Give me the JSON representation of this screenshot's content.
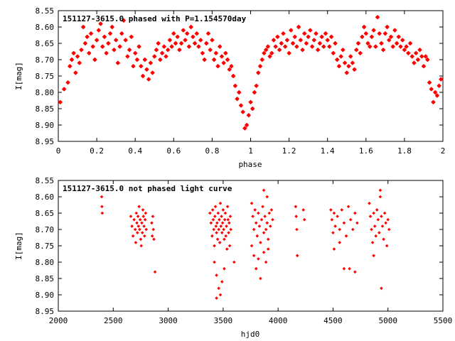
{
  "chart_data": [
    {
      "type": "scatter",
      "title": "151127-3615.0 phased with P=1.154570day",
      "xlabel": "phase",
      "ylabel": "I[mag]",
      "xlim": [
        0,
        2
      ],
      "ylim": [
        8.95,
        8.55
      ],
      "x_ticks": [
        0,
        0.2,
        0.4,
        0.6,
        0.8,
        1,
        1.2,
        1.4,
        1.6,
        1.8,
        2
      ],
      "y_ticks": [
        8.55,
        8.6,
        8.65,
        8.7,
        8.75,
        8.8,
        8.85,
        8.9,
        8.95
      ],
      "marker": "star",
      "color": "#ff0000",
      "points": [
        [
          0.01,
          8.83
        ],
        [
          0.03,
          8.79
        ],
        [
          0.05,
          8.77
        ],
        [
          0.06,
          8.72
        ],
        [
          0.07,
          8.7
        ],
        [
          0.08,
          8.68
        ],
        [
          0.09,
          8.74
        ],
        [
          0.1,
          8.69
        ],
        [
          0.11,
          8.71
        ],
        [
          0.12,
          8.67
        ],
        [
          0.13,
          8.6
        ],
        [
          0.14,
          8.65
        ],
        [
          0.15,
          8.63
        ],
        [
          0.16,
          8.68
        ],
        [
          0.17,
          8.62
        ],
        [
          0.18,
          8.66
        ],
        [
          0.19,
          8.7
        ],
        [
          0.2,
          8.64
        ],
        [
          0.21,
          8.61
        ],
        [
          0.22,
          8.59
        ],
        [
          0.23,
          8.66
        ],
        [
          0.24,
          8.63
        ],
        [
          0.25,
          8.68
        ],
        [
          0.26,
          8.65
        ],
        [
          0.27,
          8.62
        ],
        [
          0.28,
          8.6
        ],
        [
          0.29,
          8.67
        ],
        [
          0.3,
          8.64
        ],
        [
          0.31,
          8.71
        ],
        [
          0.32,
          8.66
        ],
        [
          0.33,
          8.62
        ],
        [
          0.34,
          8.58
        ],
        [
          0.35,
          8.64
        ],
        [
          0.36,
          8.69
        ],
        [
          0.37,
          8.67
        ],
        [
          0.38,
          8.63
        ],
        [
          0.39,
          8.72
        ],
        [
          0.4,
          8.68
        ],
        [
          0.41,
          8.7
        ],
        [
          0.42,
          8.66
        ],
        [
          0.43,
          8.72
        ],
        [
          0.44,
          8.75
        ],
        [
          0.45,
          8.7
        ],
        [
          0.46,
          8.73
        ],
        [
          0.47,
          8.76
        ],
        [
          0.48,
          8.71
        ],
        [
          0.49,
          8.74
        ],
        [
          0.5,
          8.69
        ],
        [
          0.51,
          8.67
        ],
        [
          0.52,
          8.65
        ],
        [
          0.53,
          8.7
        ],
        [
          0.54,
          8.68
        ],
        [
          0.55,
          8.66
        ],
        [
          0.56,
          8.69
        ],
        [
          0.57,
          8.67
        ],
        [
          0.58,
          8.64
        ],
        [
          0.59,
          8.66
        ],
        [
          0.6,
          8.62
        ],
        [
          0.61,
          8.65
        ],
        [
          0.62,
          8.63
        ],
        [
          0.63,
          8.67
        ],
        [
          0.64,
          8.65
        ],
        [
          0.65,
          8.61
        ],
        [
          0.66,
          8.64
        ],
        [
          0.67,
          8.62
        ],
        [
          0.68,
          8.66
        ],
        [
          0.69,
          8.6
        ],
        [
          0.7,
          8.63
        ],
        [
          0.71,
          8.65
        ],
        [
          0.72,
          8.62
        ],
        [
          0.73,
          8.66
        ],
        [
          0.74,
          8.64
        ],
        [
          0.75,
          8.68
        ],
        [
          0.76,
          8.7
        ],
        [
          0.77,
          8.65
        ],
        [
          0.78,
          8.62
        ],
        [
          0.79,
          8.67
        ],
        [
          0.8,
          8.64
        ],
        [
          0.81,
          8.7
        ],
        [
          0.82,
          8.68
        ],
        [
          0.83,
          8.72
        ],
        [
          0.84,
          8.66
        ],
        [
          0.85,
          8.69
        ],
        [
          0.86,
          8.71
        ],
        [
          0.87,
          8.68
        ],
        [
          0.88,
          8.7
        ],
        [
          0.89,
          8.73
        ],
        [
          0.9,
          8.72
        ],
        [
          0.91,
          8.75
        ],
        [
          0.92,
          8.78
        ],
        [
          0.93,
          8.82
        ],
        [
          0.94,
          8.8
        ],
        [
          0.95,
          8.84
        ],
        [
          0.96,
          8.86
        ],
        [
          0.97,
          8.91
        ],
        [
          0.98,
          8.9
        ],
        [
          0.99,
          8.87
        ],
        [
          1.0,
          8.83
        ],
        [
          1.01,
          8.85
        ],
        [
          1.02,
          8.8
        ],
        [
          1.03,
          8.78
        ],
        [
          1.04,
          8.74
        ],
        [
          1.05,
          8.72
        ],
        [
          1.06,
          8.7
        ],
        [
          1.07,
          8.68
        ],
        [
          1.08,
          8.67
        ],
        [
          1.09,
          8.66
        ],
        [
          1.1,
          8.69
        ],
        [
          1.11,
          8.68
        ],
        [
          1.12,
          8.64
        ],
        [
          1.13,
          8.66
        ],
        [
          1.14,
          8.63
        ],
        [
          1.15,
          8.67
        ],
        [
          1.16,
          8.65
        ],
        [
          1.17,
          8.62
        ],
        [
          1.18,
          8.66
        ],
        [
          1.19,
          8.64
        ],
        [
          1.2,
          8.68
        ],
        [
          1.21,
          8.61
        ],
        [
          1.22,
          8.65
        ],
        [
          1.23,
          8.63
        ],
        [
          1.24,
          8.66
        ],
        [
          1.25,
          8.6
        ],
        [
          1.26,
          8.64
        ],
        [
          1.27,
          8.67
        ],
        [
          1.28,
          8.62
        ],
        [
          1.29,
          8.65
        ],
        [
          1.3,
          8.63
        ],
        [
          1.31,
          8.61
        ],
        [
          1.32,
          8.66
        ],
        [
          1.33,
          8.64
        ],
        [
          1.34,
          8.62
        ],
        [
          1.35,
          8.67
        ],
        [
          1.36,
          8.65
        ],
        [
          1.37,
          8.63
        ],
        [
          1.38,
          8.66
        ],
        [
          1.39,
          8.62
        ],
        [
          1.4,
          8.64
        ],
        [
          1.41,
          8.66
        ],
        [
          1.42,
          8.63
        ],
        [
          1.43,
          8.68
        ],
        [
          1.44,
          8.65
        ],
        [
          1.45,
          8.7
        ],
        [
          1.46,
          8.72
        ],
        [
          1.47,
          8.69
        ],
        [
          1.48,
          8.67
        ],
        [
          1.49,
          8.71
        ],
        [
          1.5,
          8.74
        ],
        [
          1.51,
          8.72
        ],
        [
          1.52,
          8.69
        ],
        [
          1.53,
          8.71
        ],
        [
          1.54,
          8.73
        ],
        [
          1.55,
          8.67
        ],
        [
          1.56,
          8.65
        ],
        [
          1.57,
          8.68
        ],
        [
          1.58,
          8.63
        ],
        [
          1.59,
          8.6
        ],
        [
          1.6,
          8.62
        ],
        [
          1.61,
          8.65
        ],
        [
          1.62,
          8.66
        ],
        [
          1.63,
          8.63
        ],
        [
          1.64,
          8.61
        ],
        [
          1.65,
          8.66
        ],
        [
          1.66,
          8.57
        ],
        [
          1.67,
          8.62
        ],
        [
          1.68,
          8.65
        ],
        [
          1.69,
          8.67
        ],
        [
          1.7,
          8.62
        ],
        [
          1.71,
          8.6
        ],
        [
          1.72,
          8.64
        ],
        [
          1.73,
          8.63
        ],
        [
          1.74,
          8.66
        ],
        [
          1.75,
          8.61
        ],
        [
          1.76,
          8.65
        ],
        [
          1.77,
          8.63
        ],
        [
          1.78,
          8.66
        ],
        [
          1.79,
          8.64
        ],
        [
          1.8,
          8.67
        ],
        [
          1.81,
          8.66
        ],
        [
          1.82,
          8.68
        ],
        [
          1.83,
          8.65
        ],
        [
          1.84,
          8.69
        ],
        [
          1.85,
          8.71
        ],
        [
          1.86,
          8.68
        ],
        [
          1.87,
          8.7
        ],
        [
          1.88,
          8.67
        ],
        [
          1.89,
          8.69
        ],
        [
          1.9,
          8.72
        ],
        [
          1.91,
          8.69
        ],
        [
          1.92,
          8.7
        ],
        [
          1.93,
          8.77
        ],
        [
          1.94,
          8.79
        ],
        [
          1.95,
          8.83
        ],
        [
          1.96,
          8.8
        ],
        [
          1.97,
          8.81
        ],
        [
          1.98,
          8.78
        ],
        [
          1.99,
          8.76
        ]
      ]
    },
    {
      "type": "scatter",
      "title": "151127-3615.0 not phased light curve",
      "xlabel": "hjd0",
      "ylabel": "I[mag]",
      "xlim": [
        2000,
        5500
      ],
      "ylim": [
        8.95,
        8.55
      ],
      "x_ticks": [
        2000,
        2500,
        3000,
        3500,
        4000,
        4500,
        5000,
        5500
      ],
      "y_ticks": [
        8.55,
        8.6,
        8.65,
        8.7,
        8.75,
        8.8,
        8.85,
        8.9,
        8.95
      ],
      "marker": "diamond",
      "color": "#ff0000",
      "points": [
        [
          2395,
          8.6
        ],
        [
          2397,
          8.63
        ],
        [
          2400,
          8.65
        ],
        [
          2660,
          8.66
        ],
        [
          2670,
          8.69
        ],
        [
          2680,
          8.72
        ],
        [
          2690,
          8.67
        ],
        [
          2700,
          8.7
        ],
        [
          2705,
          8.74
        ],
        [
          2710,
          8.65
        ],
        [
          2715,
          8.68
        ],
        [
          2720,
          8.71
        ],
        [
          2725,
          8.66
        ],
        [
          2730,
          8.69
        ],
        [
          2735,
          8.63
        ],
        [
          2740,
          8.7
        ],
        [
          2745,
          8.67
        ],
        [
          2750,
          8.73
        ],
        [
          2755,
          8.75
        ],
        [
          2760,
          8.68
        ],
        [
          2765,
          8.71
        ],
        [
          2770,
          8.64
        ],
        [
          2775,
          8.66
        ],
        [
          2780,
          8.69
        ],
        [
          2785,
          8.72
        ],
        [
          2790,
          8.67
        ],
        [
          2795,
          8.65
        ],
        [
          2800,
          8.7
        ],
        [
          2850,
          8.68
        ],
        [
          2855,
          8.72
        ],
        [
          2860,
          8.66
        ],
        [
          2865,
          8.7
        ],
        [
          2870,
          8.73
        ],
        [
          2880,
          8.83
        ],
        [
          3380,
          8.65
        ],
        [
          3390,
          8.68
        ],
        [
          3400,
          8.72
        ],
        [
          3405,
          8.64
        ],
        [
          3410,
          8.67
        ],
        [
          3415,
          8.7
        ],
        [
          3420,
          8.75
        ],
        [
          3425,
          8.66
        ],
        [
          3430,
          8.63
        ],
        [
          3435,
          8.69
        ],
        [
          3440,
          8.71
        ],
        [
          3445,
          8.68
        ],
        [
          3450,
          8.73
        ],
        [
          3455,
          8.65
        ],
        [
          3460,
          8.7
        ],
        [
          3465,
          8.67
        ],
        [
          3470,
          8.74
        ],
        [
          3475,
          8.62
        ],
        [
          3480,
          8.69
        ],
        [
          3485,
          8.66
        ],
        [
          3490,
          8.71
        ],
        [
          3495,
          8.68
        ],
        [
          3500,
          8.64
        ],
        [
          3505,
          8.7
        ],
        [
          3510,
          8.73
        ],
        [
          3515,
          8.67
        ],
        [
          3520,
          8.65
        ],
        [
          3525,
          8.72
        ],
        [
          3530,
          8.69
        ],
        [
          3535,
          8.76
        ],
        [
          3540,
          8.63
        ],
        [
          3545,
          8.67
        ],
        [
          3550,
          8.71
        ],
        [
          3555,
          8.68
        ],
        [
          3560,
          8.75
        ],
        [
          3565,
          8.66
        ],
        [
          3570,
          8.7
        ],
        [
          3420,
          8.8
        ],
        [
          3440,
          8.84
        ],
        [
          3460,
          8.88
        ],
        [
          3475,
          8.9
        ],
        [
          3490,
          8.86
        ],
        [
          3510,
          8.82
        ],
        [
          3440,
          8.91
        ],
        [
          3600,
          8.8
        ],
        [
          3760,
          8.62
        ],
        [
          3770,
          8.66
        ],
        [
          3780,
          8.7
        ],
        [
          3790,
          8.64
        ],
        [
          3800,
          8.68
        ],
        [
          3810,
          8.72
        ],
        [
          3820,
          8.65
        ],
        [
          3830,
          8.69
        ],
        [
          3840,
          8.74
        ],
        [
          3850,
          8.67
        ],
        [
          3860,
          8.63
        ],
        [
          3870,
          8.71
        ],
        [
          3880,
          8.66
        ],
        [
          3890,
          8.7
        ],
        [
          3900,
          8.68
        ],
        [
          3910,
          8.73
        ],
        [
          3920,
          8.65
        ],
        [
          3930,
          8.69
        ],
        [
          3940,
          8.64
        ],
        [
          3950,
          8.67
        ],
        [
          3760,
          8.75
        ],
        [
          3780,
          8.78
        ],
        [
          3800,
          8.82
        ],
        [
          3820,
          8.79
        ],
        [
          3840,
          8.85
        ],
        [
          3870,
          8.77
        ],
        [
          3890,
          8.8
        ],
        [
          3910,
          8.76
        ],
        [
          3870,
          8.58
        ],
        [
          3900,
          8.6
        ],
        [
          4160,
          8.63
        ],
        [
          4165,
          8.66
        ],
        [
          4170,
          8.7
        ],
        [
          4175,
          8.78
        ],
        [
          4230,
          8.64
        ],
        [
          4240,
          8.67
        ],
        [
          4480,
          8.64
        ],
        [
          4490,
          8.67
        ],
        [
          4500,
          8.71
        ],
        [
          4510,
          8.65
        ],
        [
          4520,
          8.69
        ],
        [
          4540,
          8.66
        ],
        [
          4560,
          8.7
        ],
        [
          4580,
          8.64
        ],
        [
          4600,
          8.68
        ],
        [
          4620,
          8.72
        ],
        [
          4640,
          8.63
        ],
        [
          4660,
          8.67
        ],
        [
          4680,
          8.7
        ],
        [
          4700,
          8.65
        ],
        [
          4510,
          8.76
        ],
        [
          4560,
          8.74
        ],
        [
          4600,
          8.82
        ],
        [
          4650,
          8.82
        ],
        [
          4700,
          8.83
        ],
        [
          4720,
          8.68
        ],
        [
          4830,
          8.62
        ],
        [
          4840,
          8.66
        ],
        [
          4850,
          8.7
        ],
        [
          4860,
          8.74
        ],
        [
          4870,
          8.65
        ],
        [
          4880,
          8.69
        ],
        [
          4890,
          8.72
        ],
        [
          4900,
          8.64
        ],
        [
          4910,
          8.67
        ],
        [
          4920,
          8.71
        ],
        [
          4930,
          8.6
        ],
        [
          4940,
          8.66
        ],
        [
          4950,
          8.69
        ],
        [
          4960,
          8.73
        ],
        [
          4970,
          8.65
        ],
        [
          4980,
          8.68
        ],
        [
          4990,
          8.75
        ],
        [
          5000,
          8.67
        ],
        [
          5010,
          8.7
        ],
        [
          4870,
          8.78
        ],
        [
          4940,
          8.88
        ],
        [
          4930,
          8.58
        ]
      ]
    }
  ]
}
